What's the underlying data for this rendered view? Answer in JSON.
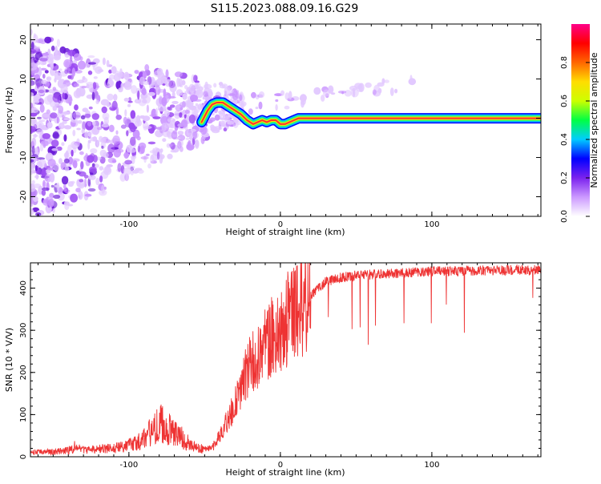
{
  "title": "S115.2023.088.09.16.G29",
  "colors": {
    "signal": "#ff3333",
    "snr_line": "#ee3333",
    "noise_palette": [
      "#e2c8ff",
      "#c993ff",
      "#9c4cf2",
      "#6a1ad8"
    ]
  },
  "chart_data": [
    {
      "type": "heatmap",
      "xlabel": "Height of straight line (km)",
      "ylabel": "Frequency (Hz)",
      "xlim": [
        -165,
        172
      ],
      "ylim": [
        -25,
        24
      ],
      "x_ticks": [
        -100,
        0,
        100
      ],
      "y_ticks": [
        -20,
        -10,
        0,
        10,
        20
      ],
      "grid": false,
      "signal_track": {
        "x": [
          -52,
          -48,
          -45,
          -42,
          -38,
          -34,
          -30,
          -26,
          -22,
          -18,
          -15,
          -12,
          -9,
          -6,
          -3,
          0,
          3,
          6,
          9,
          12,
          15,
          20,
          40,
          80,
          120,
          160,
          172
        ],
        "y": [
          -1,
          2,
          3.5,
          4,
          4,
          3,
          2,
          1,
          -0.5,
          -1.5,
          -1,
          -0.5,
          -1,
          -0.5,
          -0.5,
          -1.5,
          -1.5,
          -1,
          -0.5,
          0,
          0,
          0,
          0,
          0,
          0,
          0,
          0
        ]
      },
      "colorbar": {
        "label": "Normalized spectral amplitude",
        "range": [
          0,
          1
        ],
        "ticks": [
          0.0,
          0.2,
          0.4,
          0.6,
          0.8
        ],
        "tick_labels": [
          "0.0",
          "0.2",
          "0.4",
          "0.6",
          "0.8"
        ],
        "colors": [
          "#ffffff",
          "#cc99ff",
          "#7b22ee",
          "#0000ff",
          "#00ccff",
          "#00ff44",
          "#ccff00",
          "#ffdd00",
          "#ff6600",
          "#ff0000",
          "#ff0088"
        ]
      }
    },
    {
      "type": "line",
      "xlabel": "Height of straight line (km)",
      "ylabel": "SNR (10 * V/V)",
      "xlim": [
        -165,
        172
      ],
      "ylim": [
        0,
        460
      ],
      "x_ticks": [
        -100,
        0,
        100
      ],
      "y_ticks": [
        0,
        100,
        200,
        300,
        400
      ],
      "grid": false,
      "series": [
        {
          "x": [
            -165,
            -150,
            -140,
            -135,
            -130,
            -120,
            -110,
            -100,
            -95,
            -90,
            -85,
            -80,
            -75,
            -70,
            -65,
            -60,
            -55,
            -50,
            -45,
            -40,
            -35,
            -30,
            -25,
            -20,
            -15,
            -10,
            -5,
            0,
            5,
            10,
            15,
            20,
            25,
            30,
            40,
            50,
            60,
            70,
            80,
            90,
            100,
            110,
            120,
            130,
            140,
            150,
            160,
            172
          ],
          "y": [
            10,
            12,
            15,
            25,
            15,
            18,
            20,
            28,
            35,
            45,
            60,
            80,
            70,
            60,
            45,
            30,
            20,
            18,
            22,
            50,
            85,
            120,
            175,
            215,
            230,
            270,
            290,
            300,
            330,
            350,
            360,
            380,
            400,
            415,
            425,
            430,
            432,
            434,
            436,
            438,
            440,
            440,
            441,
            442,
            442,
            443,
            443,
            443
          ]
        }
      ]
    }
  ]
}
